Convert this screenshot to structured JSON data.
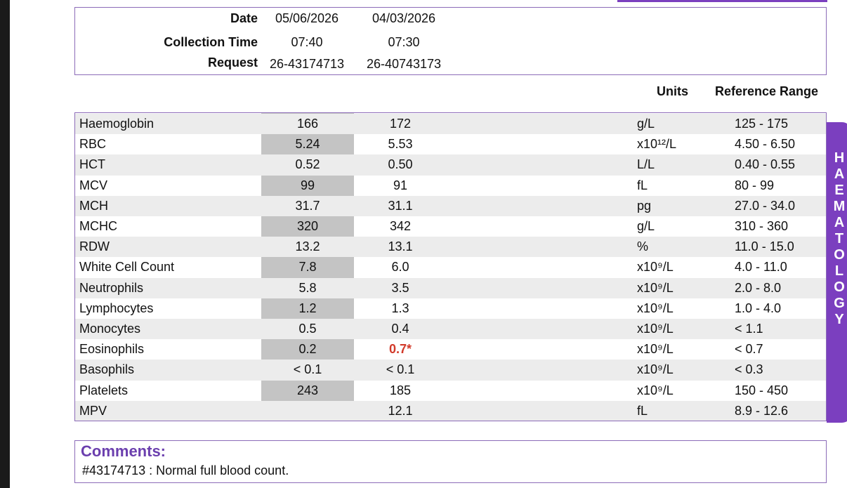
{
  "header": {
    "date_label": "Date",
    "collection_label": "Collection Time",
    "request_label": "Request",
    "columns": [
      {
        "date": "05/06/2026",
        "time": "07:40",
        "request": "26-43174713"
      },
      {
        "date": "04/03/2026",
        "time": "07:30",
        "request": "26-40743173"
      }
    ]
  },
  "table_headers": {
    "units": "Units",
    "reference": "Reference Range"
  },
  "rows": [
    {
      "name": "Haemoglobin",
      "v1": "166",
      "v2": "172",
      "unit": "g/L",
      "ref": "125 - 175"
    },
    {
      "name": "RBC",
      "v1": "5.24",
      "v2": "5.53",
      "unit": "x10¹²/L",
      "ref": "4.50 - 6.50"
    },
    {
      "name": "HCT",
      "v1": "0.52",
      "v2": "0.50",
      "unit": "L/L",
      "ref": "0.40 - 0.55"
    },
    {
      "name": "MCV",
      "v1": "99",
      "v2": "91",
      "unit": "fL",
      "ref": "80 - 99"
    },
    {
      "name": "MCH",
      "v1": "31.7",
      "v2": "31.1",
      "unit": "pg",
      "ref": "27.0 - 34.0"
    },
    {
      "name": "MCHC",
      "v1": "320",
      "v2": "342",
      "unit": "g/L",
      "ref": "310 - 360"
    },
    {
      "name": "RDW",
      "v1": "13.2",
      "v2": "13.1",
      "unit": "%",
      "ref": "11.0 - 15.0"
    },
    {
      "name": "White Cell Count",
      "v1": "7.8",
      "v2": "6.0",
      "unit": "x10⁹/L",
      "ref": "4.0 - 11.0"
    },
    {
      "name": "Neutrophils",
      "v1": "5.8",
      "v2": "3.5",
      "unit": "x10⁹/L",
      "ref": "2.0 - 8.0"
    },
    {
      "name": "Lymphocytes",
      "v1": "1.2",
      "v2": "1.3",
      "unit": "x10⁹/L",
      "ref": "1.0 - 4.0"
    },
    {
      "name": "Monocytes",
      "v1": "0.5",
      "v2": "0.4",
      "unit": "x10⁹/L",
      "ref": "< 1.1"
    },
    {
      "name": "Eosinophils",
      "v1": "0.2",
      "v2": "0.7*",
      "v2_flag": true,
      "unit": "x10⁹/L",
      "ref": "< 0.7"
    },
    {
      "name": "Basophils",
      "v1": "< 0.1",
      "v2": "< 0.1",
      "unit": "x10⁹/L",
      "ref": "< 0.3"
    },
    {
      "name": "Platelets",
      "v1": "243",
      "v2": "185",
      "unit": "x10⁹/L",
      "ref": "150 - 450"
    },
    {
      "name": "MPV",
      "v1": "",
      "v2": "12.1",
      "unit": "fL",
      "ref": "8.9 - 12.6"
    }
  ],
  "side_tab": {
    "label": "HAEMATOLOGY"
  },
  "comments": {
    "title": "Comments:",
    "text": "#43174713 : Normal full blood count."
  },
  "colors": {
    "accent": "#7b3fbf",
    "flag": "#d23a2a"
  }
}
